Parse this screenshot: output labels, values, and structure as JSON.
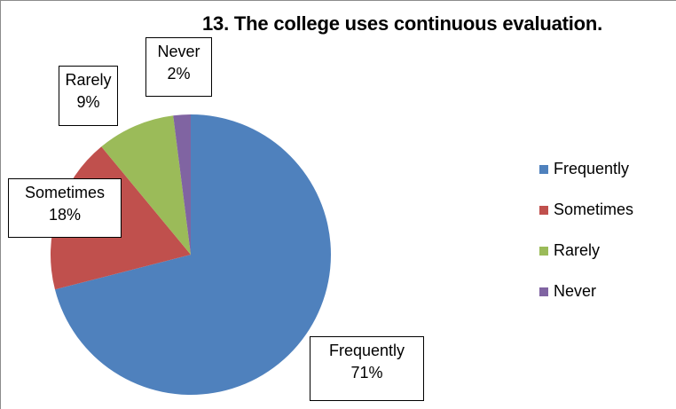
{
  "chart_data": {
    "type": "pie",
    "title": "13. The college uses continuous evaluation.",
    "slices": [
      {
        "label": "Frequently",
        "value": 71,
        "pct_label": "71%",
        "color": "#4f81bd"
      },
      {
        "label": "Sometimes",
        "value": 18,
        "pct_label": "18%",
        "color": "#c0504d"
      },
      {
        "label": "Rarely",
        "value": 9,
        "pct_label": "9%",
        "color": "#9bbb59"
      },
      {
        "label": "Never",
        "value": 2,
        "pct_label": "2%",
        "color": "#8064a2"
      }
    ],
    "legend": {
      "position": "right"
    }
  }
}
